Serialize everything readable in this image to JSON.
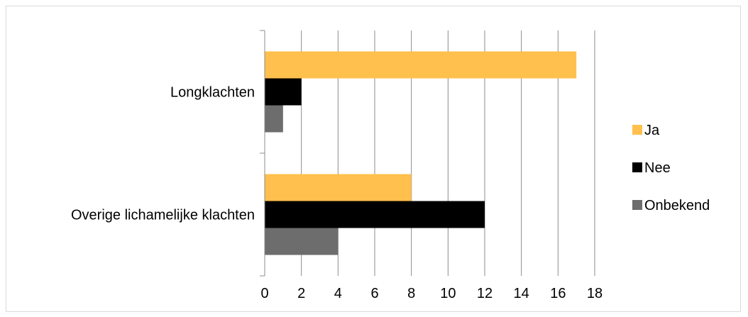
{
  "chart_data": {
    "type": "bar",
    "orientation": "horizontal",
    "categories": [
      "Longklachten",
      "Overige lichamelijke klachten"
    ],
    "series": [
      {
        "name": "Ja",
        "values": [
          17,
          8
        ],
        "color": "#FFC04D"
      },
      {
        "name": "Nee",
        "values": [
          2,
          12
        ],
        "color": "#000000"
      },
      {
        "name": "Onbekend",
        "values": [
          1,
          4
        ],
        "color": "#6D6D6D"
      }
    ],
    "xlim": [
      0,
      18
    ],
    "xticks": [
      0,
      2,
      4,
      6,
      8,
      10,
      12,
      14,
      16,
      18
    ],
    "grid": true,
    "legend_position": "right"
  }
}
